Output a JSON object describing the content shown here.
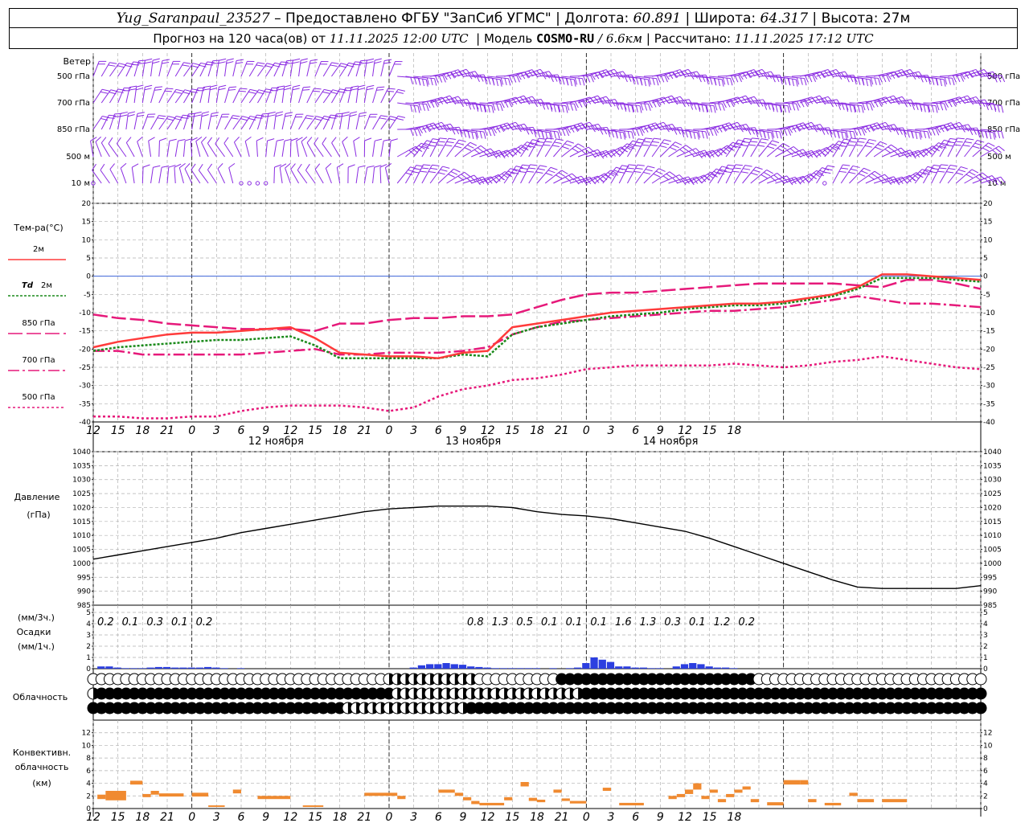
{
  "header": {
    "station": "Yug_Saranpaul_23527",
    "provider": "Предоставлено ФГБУ \"ЗапСиб УГМС\"",
    "lon_label": "Долгота:",
    "lon": "60.891",
    "lat_label": "Широта:",
    "lat": "64.317",
    "alt_label": "Высота:",
    "alt": "27м",
    "forecast_prefix": "Прогноз на 120 часа(ов) от",
    "forecast_time": "11.11.2025 12:00 UTC",
    "model_label": "Модель",
    "model": "COSMO-RU",
    "resolution": "6.6км",
    "computed_label": "Рассчитано:",
    "computed_time": "11.11.2025 17:12 UTC",
    "dash": "–",
    "sep": "|",
    "slash": "/"
  },
  "axis": {
    "hours_start": 12,
    "step_h": 3,
    "hour_ticks": [
      "12",
      "15",
      "18",
      "21",
      "0",
      "3",
      "6",
      "9",
      "12",
      "15",
      "18",
      "21",
      "0",
      "3",
      "6",
      "9",
      "12",
      "15",
      "18",
      "21",
      "0",
      "3",
      "6",
      "9",
      "12",
      "15",
      "18"
    ],
    "days": [
      {
        "label": "12 ноября",
        "at_h": 24
      },
      {
        "label": "13 ноября",
        "at_h": 48
      },
      {
        "label": "14 ноября",
        "at_h": 72
      }
    ],
    "midnights_h": [
      12,
      36,
      60,
      84
    ]
  },
  "chart_data": [
    {
      "type": "wind_barbs",
      "title": "Ветер",
      "levels": [
        "500 гПа",
        "700 гПа",
        "850 гПа",
        "500 м",
        "10 м"
      ],
      "color": "#8a2be2"
    },
    {
      "type": "line",
      "title": "Тем-ра(°C)",
      "ylim": [
        -40,
        20
      ],
      "yticks": [
        -40,
        -35,
        -30,
        -25,
        -20,
        -15,
        -10,
        -5,
        0,
        5,
        10,
        15,
        20
      ],
      "x_hours": [
        0,
        3,
        6,
        9,
        12,
        15,
        18,
        21,
        24,
        27,
        30,
        33,
        36,
        39,
        42,
        45,
        48,
        51,
        54,
        57,
        60,
        63,
        66,
        69,
        72,
        75,
        78,
        81,
        84,
        87,
        90,
        93,
        96,
        99,
        102,
        105,
        108
      ],
      "series": [
        {
          "name": "2м",
          "color": "#ff3b3b",
          "dash": "",
          "width": 2.5,
          "values": [
            -19.5,
            -18,
            -17,
            -16,
            -15.5,
            -15.5,
            -15,
            -14.5,
            -14,
            -17,
            -21,
            -21.5,
            -22,
            -22,
            -22.5,
            -21,
            -20.5,
            -14,
            -13,
            -12,
            -11,
            -10,
            -9.5,
            -9,
            -8.5,
            -8,
            -7.5,
            -7.5,
            -7,
            -6,
            -5,
            -3,
            0.5,
            0.5,
            0,
            -0.5,
            -1
          ]
        },
        {
          "name": "Td 2м",
          "color": "#1a8a1a",
          "dash": "3,2",
          "width": 2.5,
          "values": [
            -20.5,
            -19.5,
            -19,
            -18.5,
            -18,
            -17.5,
            -17.5,
            -17,
            -16.5,
            -19,
            -22.5,
            -22.5,
            -22.5,
            -22.5,
            -22.5,
            -21.5,
            -22,
            -16,
            -14,
            -13,
            -12,
            -11,
            -10.5,
            -10,
            -9,
            -8.5,
            -8,
            -8,
            -7.5,
            -6.5,
            -5.5,
            -3.5,
            -0.5,
            -0.5,
            -0.5,
            -1,
            -1.5
          ]
        },
        {
          "name": "850 гПа",
          "color": "#e6197a",
          "dash": "18,5",
          "width": 2.5,
          "values": [
            -10.5,
            -11.5,
            -12,
            -13,
            -13.5,
            -14,
            -14.5,
            -14.5,
            -14.5,
            -15,
            -13,
            -13,
            -12,
            -11.5,
            -11.5,
            -11,
            -11,
            -10.5,
            -8.5,
            -6.5,
            -5,
            -4.5,
            -4.5,
            -4,
            -3.5,
            -3,
            -2.5,
            -2,
            -2,
            -2,
            -2,
            -2.5,
            -3,
            -1,
            -1,
            -2,
            -3.5
          ]
        },
        {
          "name": "700 гПа",
          "color": "#e6197a",
          "dash": "14,4,3,4",
          "width": 2.5,
          "values": [
            -20.5,
            -20.5,
            -21.5,
            -21.5,
            -21.5,
            -21.5,
            -21.5,
            -21,
            -20.5,
            -20,
            -21.5,
            -21.5,
            -21,
            -21,
            -21,
            -20.5,
            -19.5,
            -16,
            -14,
            -12.5,
            -12,
            -11.5,
            -11,
            -10.5,
            -10,
            -9.5,
            -9.5,
            -9,
            -8.5,
            -7.5,
            -6.5,
            -5.5,
            -6.5,
            -7.5,
            -7.5,
            -8,
            -8.5
          ]
        },
        {
          "name": "500 гПа",
          "color": "#e6197a",
          "dash": "3,3",
          "width": 2.5,
          "values": [
            -38.5,
            -38.5,
            -39,
            -39,
            -38.5,
            -38.5,
            -37,
            -36,
            -35.5,
            -35.5,
            -35.5,
            -36,
            -37,
            -36,
            -33,
            -31,
            -30,
            -28.5,
            -28,
            -27,
            -25.5,
            -25,
            -24.5,
            -24.5,
            -24.5,
            -24.5,
            -24,
            -24.5,
            -25,
            -24.5,
            -23.5,
            -23,
            -22,
            -23,
            -24,
            -25,
            -25.5
          ]
        }
      ],
      "zero_line_color": "#3d63d8"
    },
    {
      "type": "line",
      "title": "Давление",
      "ylabel": "(гПа)",
      "ylim": [
        985,
        1040
      ],
      "yticks": [
        985,
        990,
        995,
        1000,
        1005,
        1010,
        1015,
        1020,
        1025,
        1030,
        1035,
        1040
      ],
      "x_hours": [
        0,
        3,
        6,
        9,
        12,
        15,
        18,
        21,
        24,
        27,
        30,
        33,
        36,
        39,
        42,
        45,
        48,
        51,
        54,
        57,
        60,
        63,
        66,
        69,
        72,
        75,
        78,
        81,
        84,
        87,
        90,
        93,
        96,
        99,
        102,
        105,
        108
      ],
      "series": [
        {
          "name": "",
          "color": "#000000",
          "values": [
            1001.5,
            1003,
            1004.5,
            1006,
            1007.5,
            1009,
            1011,
            1012.5,
            1014,
            1015.5,
            1017,
            1018.5,
            1019.5,
            1020,
            1020.5,
            1020.5,
            1020.5,
            1020,
            1018.5,
            1017.5,
            1017,
            1016,
            1014.5,
            1013,
            1011.5,
            1009,
            1006,
            1003,
            1000,
            997,
            994,
            991.5,
            991,
            991,
            991,
            991,
            992
          ]
        }
      ]
    },
    {
      "type": "bar",
      "title": "Осадки",
      "ylabel_top": "(мм/3ч.)",
      "ylabel_bottom": "(мм/1ч.)",
      "ylim": [
        0,
        5
      ],
      "yticks": [
        0,
        1,
        2,
        3,
        4,
        5
      ],
      "color": "#2c3fe0",
      "totals_3h": [
        {
          "at_h": 1.5,
          "v": "0.2"
        },
        {
          "at_h": 4.5,
          "v": "0.1"
        },
        {
          "at_h": 7.5,
          "v": "0.3"
        },
        {
          "at_h": 10.5,
          "v": "0.1"
        },
        {
          "at_h": 13.5,
          "v": "0.2"
        },
        {
          "at_h": 46.5,
          "v": "0.8"
        },
        {
          "at_h": 49.5,
          "v": "1.3"
        },
        {
          "at_h": 52.5,
          "v": "0.5"
        },
        {
          "at_h": 55.5,
          "v": "0.1"
        },
        {
          "at_h": 58.5,
          "v": "0.1"
        },
        {
          "at_h": 61.5,
          "v": "0.1"
        },
        {
          "at_h": 64.5,
          "v": "1.6"
        },
        {
          "at_h": 67.5,
          "v": "1.3"
        },
        {
          "at_h": 70.5,
          "v": "0.3"
        },
        {
          "at_h": 73.5,
          "v": "0.1"
        },
        {
          "at_h": 76.5,
          "v": "1.2"
        },
        {
          "at_h": 79.5,
          "v": "0.2"
        }
      ],
      "hourly": [
        {
          "h": 1,
          "v": 0.2
        },
        {
          "h": 2,
          "v": 0.2
        },
        {
          "h": 3,
          "v": 0.1
        },
        {
          "h": 4,
          "v": 0.05
        },
        {
          "h": 5,
          "v": 0.05
        },
        {
          "h": 6,
          "v": 0.05
        },
        {
          "h": 7,
          "v": 0.1
        },
        {
          "h": 8,
          "v": 0.15
        },
        {
          "h": 9,
          "v": 0.15
        },
        {
          "h": 10,
          "v": 0.1
        },
        {
          "h": 11,
          "v": 0.1
        },
        {
          "h": 12,
          "v": 0.1
        },
        {
          "h": 13,
          "v": 0.1
        },
        {
          "h": 14,
          "v": 0.15
        },
        {
          "h": 15,
          "v": 0.1
        },
        {
          "h": 16,
          "v": 0.05
        },
        {
          "h": 18,
          "v": 0.05
        },
        {
          "h": 39,
          "v": 0.1
        },
        {
          "h": 40,
          "v": 0.3
        },
        {
          "h": 41,
          "v": 0.4
        },
        {
          "h": 42,
          "v": 0.4
        },
        {
          "h": 43,
          "v": 0.5
        },
        {
          "h": 44,
          "v": 0.4
        },
        {
          "h": 45,
          "v": 0.35
        },
        {
          "h": 46,
          "v": 0.2
        },
        {
          "h": 47,
          "v": 0.15
        },
        {
          "h": 48,
          "v": 0.1
        },
        {
          "h": 49,
          "v": 0.05
        },
        {
          "h": 50,
          "v": 0.05
        },
        {
          "h": 51,
          "v": 0.05
        },
        {
          "h": 52,
          "v": 0.05
        },
        {
          "h": 53,
          "v": 0.05
        },
        {
          "h": 54,
          "v": 0.05
        },
        {
          "h": 56,
          "v": 0.05
        },
        {
          "h": 58,
          "v": 0.05
        },
        {
          "h": 59,
          "v": 0.1
        },
        {
          "h": 60,
          "v": 0.5
        },
        {
          "h": 61,
          "v": 1.0
        },
        {
          "h": 62,
          "v": 0.8
        },
        {
          "h": 63,
          "v": 0.6
        },
        {
          "h": 64,
          "v": 0.2
        },
        {
          "h": 65,
          "v": 0.2
        },
        {
          "h": 66,
          "v": 0.1
        },
        {
          "h": 67,
          "v": 0.1
        },
        {
          "h": 68,
          "v": 0.05
        },
        {
          "h": 69,
          "v": 0.05
        },
        {
          "h": 71,
          "v": 0.2
        },
        {
          "h": 72,
          "v": 0.4
        },
        {
          "h": 73,
          "v": 0.5
        },
        {
          "h": 74,
          "v": 0.4
        },
        {
          "h": 75,
          "v": 0.2
        },
        {
          "h": 76,
          "v": 0.1
        },
        {
          "h": 77,
          "v": 0.1
        },
        {
          "h": 78,
          "v": 0.05
        }
      ]
    },
    {
      "type": "cloud_symbols",
      "title": "Облачность",
      "rows": 3
    },
    {
      "type": "bar",
      "title": "Конвективн. облачность",
      "ylabel": "(км)",
      "ylim": [
        0,
        14
      ],
      "yticks": [
        0,
        2,
        4,
        6,
        8,
        10,
        12
      ],
      "color": "#f08a30",
      "segments": [
        {
          "h0": 0.5,
          "h1": 1.5,
          "lo": 1.5,
          "hi": 2.2
        },
        {
          "h0": 1.5,
          "h1": 4,
          "lo": 1.3,
          "hi": 2.8
        },
        {
          "h0": 4.5,
          "h1": 6,
          "lo": 3.8,
          "hi": 4.4
        },
        {
          "h0": 6,
          "h1": 7,
          "lo": 1.8,
          "hi": 2.3
        },
        {
          "h0": 7,
          "h1": 8,
          "lo": 2.2,
          "hi": 2.8
        },
        {
          "h0": 8,
          "h1": 11,
          "lo": 1.9,
          "hi": 2.4
        },
        {
          "h0": 12,
          "h1": 14,
          "lo": 1.9,
          "hi": 2.5
        },
        {
          "h0": 14,
          "h1": 16,
          "lo": 0.3,
          "hi": 0.5
        },
        {
          "h0": 17,
          "h1": 18,
          "lo": 2.4,
          "hi": 3.0
        },
        {
          "h0": 20,
          "h1": 24,
          "lo": 1.5,
          "hi": 2.0
        },
        {
          "h0": 25.5,
          "h1": 28,
          "lo": 0.3,
          "hi": 0.5
        },
        {
          "h0": 33,
          "h1": 37,
          "lo": 2.0,
          "hi": 2.5
        },
        {
          "h0": 37,
          "h1": 38,
          "lo": 1.5,
          "hi": 2.0
        },
        {
          "h0": 42,
          "h1": 44,
          "lo": 2.5,
          "hi": 3.0
        },
        {
          "h0": 44,
          "h1": 45,
          "lo": 2.0,
          "hi": 2.5
        },
        {
          "h0": 45,
          "h1": 46,
          "lo": 1.3,
          "hi": 1.8
        },
        {
          "h0": 46,
          "h1": 47,
          "lo": 0.7,
          "hi": 1.2
        },
        {
          "h0": 47,
          "h1": 50,
          "lo": 0.5,
          "hi": 0.9
        },
        {
          "h0": 50,
          "h1": 51,
          "lo": 1.3,
          "hi": 1.8
        },
        {
          "h0": 52,
          "h1": 53,
          "lo": 3.5,
          "hi": 4.2
        },
        {
          "h0": 53,
          "h1": 54,
          "lo": 1.2,
          "hi": 1.7
        },
        {
          "h0": 54,
          "h1": 55,
          "lo": 1.0,
          "hi": 1.4
        },
        {
          "h0": 56,
          "h1": 57,
          "lo": 2.5,
          "hi": 3.0
        },
        {
          "h0": 57,
          "h1": 58,
          "lo": 1.2,
          "hi": 1.6
        },
        {
          "h0": 58,
          "h1": 60,
          "lo": 0.8,
          "hi": 1.2
        },
        {
          "h0": 62,
          "h1": 63,
          "lo": 2.8,
          "hi": 3.3
        },
        {
          "h0": 64,
          "h1": 67,
          "lo": 0.5,
          "hi": 0.9
        },
        {
          "h0": 70,
          "h1": 71,
          "lo": 1.5,
          "hi": 2.0
        },
        {
          "h0": 71,
          "h1": 72,
          "lo": 1.8,
          "hi": 2.3
        },
        {
          "h0": 72,
          "h1": 73,
          "lo": 2.3,
          "hi": 3.0
        },
        {
          "h0": 73,
          "h1": 74,
          "lo": 3.0,
          "hi": 4.0
        },
        {
          "h0": 74,
          "h1": 75,
          "lo": 1.5,
          "hi": 2.0
        },
        {
          "h0": 75,
          "h1": 76,
          "lo": 2.5,
          "hi": 3.0
        },
        {
          "h0": 76,
          "h1": 77,
          "lo": 1.0,
          "hi": 1.5
        },
        {
          "h0": 77,
          "h1": 78,
          "lo": 1.8,
          "hi": 2.3
        },
        {
          "h0": 78,
          "h1": 79,
          "lo": 2.5,
          "hi": 3.0
        },
        {
          "h0": 79,
          "h1": 80,
          "lo": 3.0,
          "hi": 3.5
        },
        {
          "h0": 80,
          "h1": 81,
          "lo": 1.0,
          "hi": 1.5
        },
        {
          "h0": 82,
          "h1": 84,
          "lo": 0.5,
          "hi": 1.0
        },
        {
          "h0": 84,
          "h1": 86,
          "lo": 3.8,
          "hi": 4.5
        },
        {
          "h0": 86,
          "h1": 87,
          "lo": 3.8,
          "hi": 4.5
        },
        {
          "h0": 87,
          "h1": 88,
          "lo": 1.0,
          "hi": 1.5
        },
        {
          "h0": 89,
          "h1": 91,
          "lo": 0.5,
          "hi": 0.9
        },
        {
          "h0": 92,
          "h1": 93,
          "lo": 2.0,
          "hi": 2.5
        },
        {
          "h0": 93,
          "h1": 95,
          "lo": 1.0,
          "hi": 1.5
        },
        {
          "h0": 96,
          "h1": 99,
          "lo": 1.0,
          "hi": 1.5
        }
      ]
    }
  ]
}
